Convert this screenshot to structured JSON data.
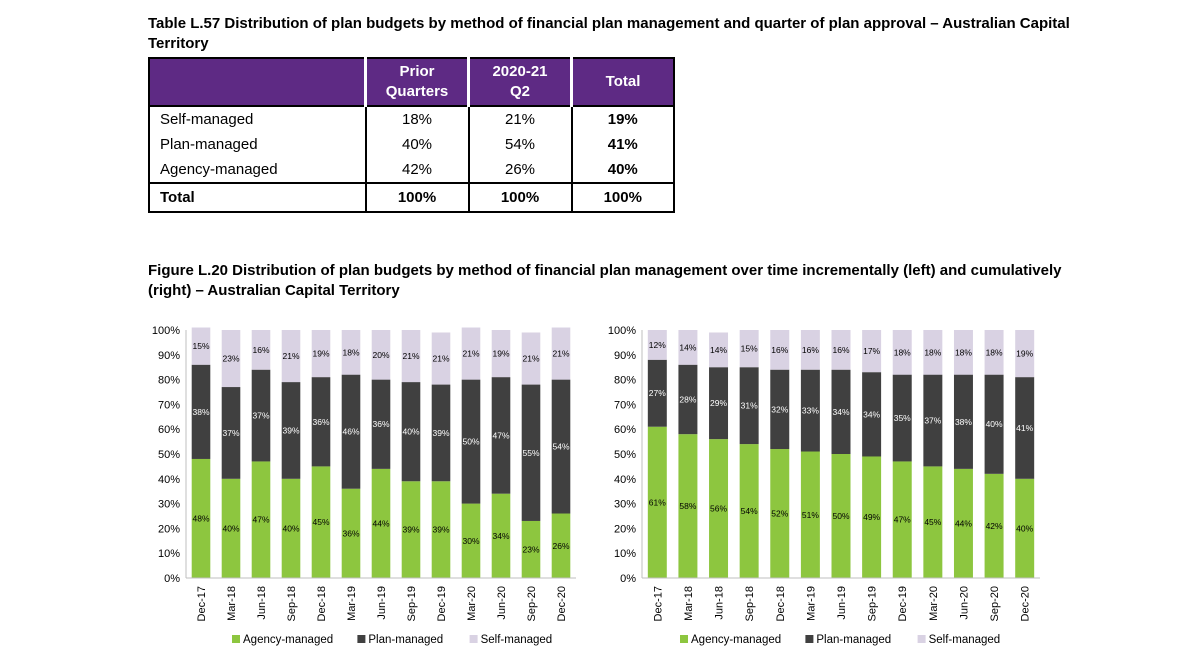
{
  "table": {
    "title": "Table L.57 Distribution of plan budgets by method of financial plan management and quarter of plan approval – Australian Capital Territory",
    "header": {
      "col1": [
        "Prior",
        "Quarters"
      ],
      "col2": [
        "2020-21",
        "Q2"
      ],
      "col3": "Total"
    },
    "rows": [
      {
        "label": "Self-managed",
        "prior": "18%",
        "q2": "21%",
        "total": "19%"
      },
      {
        "label": "Plan-managed",
        "prior": "40%",
        "q2": "54%",
        "total": "41%"
      },
      {
        "label": "Agency-managed",
        "prior": "42%",
        "q2": "26%",
        "total": "40%"
      }
    ],
    "total_row": {
      "label": "Total",
      "prior": "100%",
      "q2": "100%",
      "total": "100%"
    }
  },
  "figure": {
    "title": "Figure L.20 Distribution of plan budgets by method of financial plan management over time incrementally (left) and cumulatively (right) – Australian Capital Territory"
  },
  "chart_data": [
    {
      "type": "bar",
      "stacked": true,
      "categories": [
        "Dec-17",
        "Mar-18",
        "Jun-18",
        "Sep-18",
        "Dec-18",
        "Mar-19",
        "Jun-19",
        "Sep-19",
        "Dec-19",
        "Mar-20",
        "Jun-20",
        "Sep-20",
        "Dec-20"
      ],
      "series": [
        {
          "name": "Agency-managed",
          "color": "#8dc63f",
          "values": [
            48,
            40,
            47,
            40,
            45,
            36,
            44,
            39,
            39,
            30,
            34,
            23,
            26
          ]
        },
        {
          "name": "Plan-managed",
          "color": "#404040",
          "values": [
            38,
            37,
            37,
            39,
            36,
            46,
            36,
            40,
            39,
            50,
            47,
            55,
            54
          ]
        },
        {
          "name": "Self-managed",
          "color": "#d9d2e3",
          "values": [
            15,
            23,
            16,
            21,
            19,
            18,
            20,
            21,
            21,
            21,
            19,
            21,
            21
          ]
        }
      ],
      "yticks": [
        "0%",
        "10%",
        "20%",
        "30%",
        "40%",
        "50%",
        "60%",
        "70%",
        "80%",
        "90%",
        "100%"
      ],
      "ylim": [
        0,
        100
      ],
      "legend": "bottom"
    },
    {
      "type": "bar",
      "stacked": true,
      "categories": [
        "Dec-17",
        "Mar-18",
        "Jun-18",
        "Sep-18",
        "Dec-18",
        "Mar-19",
        "Jun-19",
        "Sep-19",
        "Dec-19",
        "Mar-20",
        "Jun-20",
        "Sep-20",
        "Dec-20"
      ],
      "series": [
        {
          "name": "Agency-managed",
          "color": "#8dc63f",
          "values": [
            61,
            58,
            56,
            54,
            52,
            51,
            50,
            49,
            47,
            45,
            44,
            42,
            40
          ]
        },
        {
          "name": "Plan-managed",
          "color": "#404040",
          "values": [
            27,
            28,
            29,
            31,
            32,
            33,
            34,
            34,
            35,
            37,
            38,
            40,
            41
          ]
        },
        {
          "name": "Self-managed",
          "color": "#d9d2e3",
          "values": [
            12,
            14,
            14,
            15,
            16,
            16,
            16,
            17,
            18,
            18,
            18,
            18,
            19
          ]
        }
      ],
      "yticks": [
        "0%",
        "10%",
        "20%",
        "30%",
        "40%",
        "50%",
        "60%",
        "70%",
        "80%",
        "90%",
        "100%"
      ],
      "ylim": [
        0,
        100
      ],
      "legend": "bottom"
    }
  ]
}
